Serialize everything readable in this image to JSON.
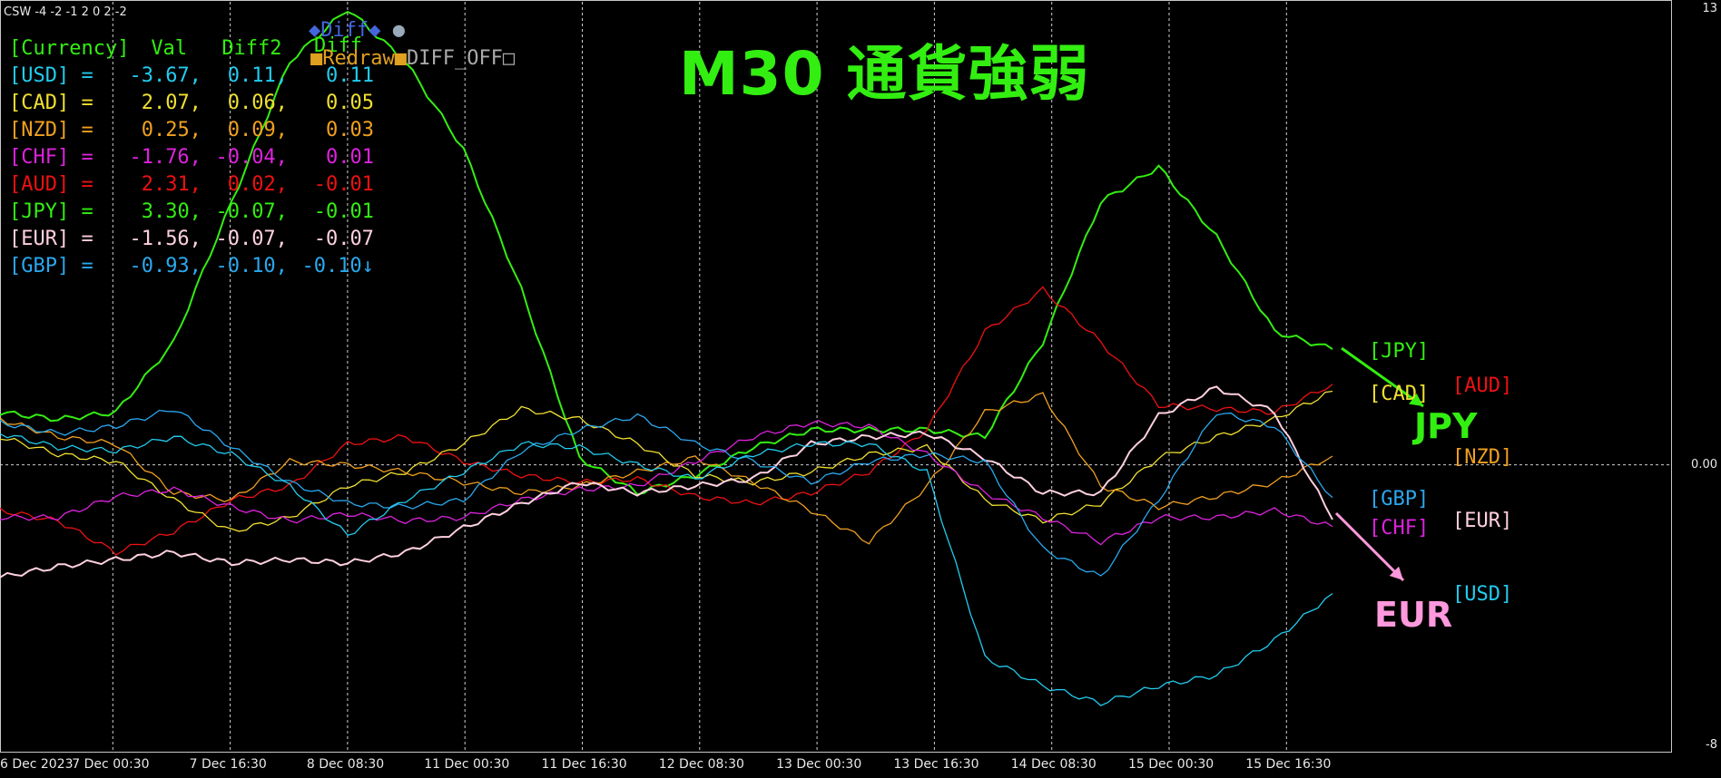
{
  "indicator_label": "CSW -4 -2 -1 2 0 2 -2",
  "title": "M30 通貨強弱",
  "controls": {
    "diff_label": "◆Diff◆",
    "diff_circle": "●",
    "diff_green": "Diff",
    "redraw": "■Redraw■",
    "diff_off": "DIFF_OFF□"
  },
  "table": {
    "header": [
      "[Currency]",
      "Val",
      "Diff2",
      ""
    ],
    "rows": [
      {
        "cur": "[USD] =",
        "val": "-3.67,",
        "d1": "0.11,",
        "d2": "0.11",
        "color": "#22ccee"
      },
      {
        "cur": "[CAD] =",
        "val": "2.07,",
        "d1": "0.06,",
        "d2": "0.05",
        "color": "#f0e030"
      },
      {
        "cur": "[NZD] =",
        "val": "0.25,",
        "d1": "0.09,",
        "d2": "0.03",
        "color": "#f0a020"
      },
      {
        "cur": "[CHF] =",
        "val": "-1.76,",
        "d1": "-0.04,",
        "d2": "0.01",
        "color": "#dd22dd"
      },
      {
        "cur": "[AUD] =",
        "val": "2.31,",
        "d1": "0.02,",
        "d2": "-0.01",
        "color": "#ee1111"
      },
      {
        "cur": "[JPY] =",
        "val": "3.30,",
        "d1": "-0.07,",
        "d2": "-0.01",
        "color": "#33ee11"
      },
      {
        "cur": "[EUR] =",
        "val": "-1.56,",
        "d1": "-0.07,",
        "d2": "-0.07",
        "color": "#ffd0e0"
      },
      {
        "cur": "[GBP] =",
        "val": "-0.93,",
        "d1": "-0.10,",
        "d2": "-0.10↓",
        "color": "#2aa8ee"
      }
    ]
  },
  "right_labels": [
    {
      "text": "[JPY]",
      "color": "#33ee11"
    },
    {
      "text": "[CAD]",
      "color": "#f0e030"
    },
    {
      "text": "[AUD]",
      "color": "#ee1111"
    },
    {
      "text": "[NZD]",
      "color": "#f0a020"
    },
    {
      "text": "[GBP]",
      "color": "#2aa8ee"
    },
    {
      "text": "[CHF]",
      "color": "#dd22dd"
    },
    {
      "text": "[EUR]",
      "color": "#ffd0e0"
    },
    {
      "text": "[USD]",
      "color": "#22ccee"
    }
  ],
  "annotations": {
    "jpy": "JPY",
    "eur": "EUR",
    "jpy_color": "#33ee11",
    "eur_color": "#ff99dd"
  },
  "chart_data": {
    "type": "line",
    "y_axis_labels": [
      "13",
      "0.00",
      "-8"
    ],
    "ylim": [
      -8,
      13
    ],
    "x_tick_labels": [
      "6 Dec 2023",
      "7 Dec 00:30",
      "7 Dec 16:30",
      "8 Dec 08:30",
      "11 Dec 00:30",
      "11 Dec 16:30",
      "12 Dec 08:30",
      "13 Dec 00:30",
      "13 Dec 16:30",
      "14 Dec 08:30",
      "15 Dec 00:30",
      "15 Dec 16:30"
    ],
    "grid": "vertical-dotted",
    "series": [
      {
        "name": "JPY",
        "color": "#33ee11",
        "values": [
          1.5,
          1.3,
          1.5,
          3.5,
          7.5,
          11.5,
          13,
          11.5,
          9,
          5,
          0.2,
          -0.8,
          -0.3,
          0.5,
          1.0,
          1.0,
          1.0,
          0.8,
          3.5,
          7.5,
          8.5,
          6.5,
          3.8,
          3.3
        ]
      },
      {
        "name": "AUD",
        "color": "#ee1111",
        "values": [
          -1.3,
          -1.6,
          -2.5,
          -1.9,
          -1.0,
          -0.6,
          0.6,
          0.8,
          0.1,
          -0.3,
          -0.5,
          -0.4,
          -0.9,
          -1.1,
          -0.8,
          -0.2,
          1.0,
          3.8,
          5.0,
          3.5,
          1.7,
          1.6,
          1.5,
          2.3
        ]
      },
      {
        "name": "CAD",
        "color": "#f0e030",
        "values": [
          0.8,
          0.3,
          0.1,
          -1.0,
          -1.9,
          -1.5,
          -0.6,
          -0.2,
          0.6,
          1.6,
          1.3,
          0.6,
          -0.3,
          -0.5,
          -0.2,
          0.3,
          0.5,
          -1.0,
          -1.6,
          -1.1,
          0.2,
          0.8,
          1.3,
          2.1
        ]
      },
      {
        "name": "NZD",
        "color": "#f0a020",
        "values": [
          1.3,
          0.8,
          0.6,
          -0.8,
          -1.0,
          0.1,
          0.0,
          -0.2,
          -0.5,
          -0.8,
          -0.6,
          -0.2,
          0.2,
          -0.5,
          -1.3,
          -2.2,
          -0.6,
          1.5,
          2.0,
          -0.6,
          -1.2,
          -0.9,
          -0.5,
          0.25
        ]
      },
      {
        "name": "CHF",
        "color": "#dd22dd",
        "values": [
          -1.5,
          -1.5,
          -0.9,
          -0.7,
          -1.2,
          -1.6,
          -1.4,
          -1.6,
          -1.5,
          -1.0,
          -0.7,
          -0.6,
          0.1,
          0.8,
          1.2,
          1.1,
          0.3,
          -0.8,
          -1.5,
          -2.2,
          -1.5,
          -1.5,
          -1.3,
          -1.76
        ]
      },
      {
        "name": "EUR",
        "color": "#ffd0e0",
        "values": [
          -3.2,
          -2.9,
          -2.7,
          -2.5,
          -2.8,
          -2.7,
          -2.8,
          -2.5,
          -1.8,
          -1.1,
          -0.5,
          -0.8,
          -0.6,
          -0.4,
          0.6,
          0.8,
          0.9,
          0.2,
          -0.8,
          -0.8,
          1.4,
          2.2,
          1.5,
          -1.56
        ]
      },
      {
        "name": "GBP",
        "color": "#2aa8ee",
        "values": [
          1.2,
          0.9,
          1.1,
          1.6,
          0.5,
          -0.5,
          -1.1,
          -1.2,
          -1.0,
          0.4,
          1.0,
          1.4,
          0.6,
          0.1,
          -0.5,
          0.1,
          0.3,
          0.1,
          -2.4,
          -3.2,
          -1.0,
          1.5,
          1.1,
          -0.93
        ]
      },
      {
        "name": "USD",
        "color": "#22ccee",
        "values": [
          0.9,
          0.5,
          0.4,
          0.8,
          0.3,
          -0.6,
          -2.0,
          -1.0,
          -0.2,
          0.6,
          0.5,
          0.0,
          -0.4,
          0.3,
          0.6,
          0.6,
          -0.2,
          -5.5,
          -6.3,
          -6.8,
          -6.3,
          -6.0,
          -5.0,
          -3.67
        ]
      }
    ]
  }
}
